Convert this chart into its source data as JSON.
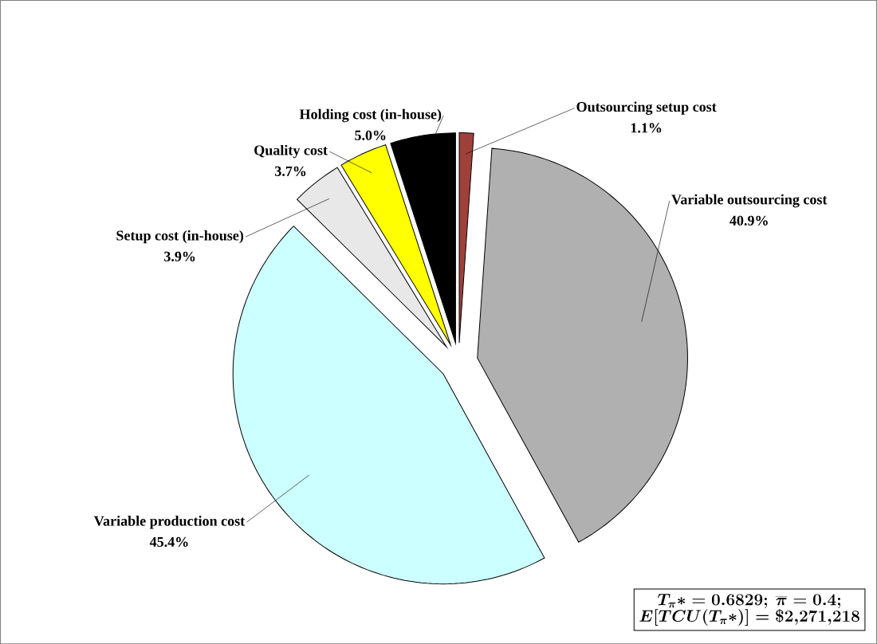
{
  "chart_data": {
    "type": "pie",
    "categories": [
      "Outsourcing setup cost",
      "Variable outsourcing cost",
      "Variable production cost",
      "Setup cost (in-house)",
      "Quality cost",
      "Holding cost (in-house)"
    ],
    "values": [
      1.1,
      40.9,
      45.4,
      3.9,
      3.7,
      5.0
    ],
    "value_labels": [
      "1.1%",
      "40.9%",
      "45.4%",
      "3.9%",
      "3.7%",
      "5.0%"
    ],
    "colors": [
      "#a0403a",
      "#b0b0b0",
      "#ccffff",
      "#e8e8e8",
      "#ffff00",
      "#000000"
    ],
    "annotations": [
      "T_{\\pi}{*} = 0.6829;\\ \\overline{\\pi} = 0.4;",
      "E[TCU(T_{\\pi}{*})] = \\$2{,}271{,}218"
    ]
  }
}
